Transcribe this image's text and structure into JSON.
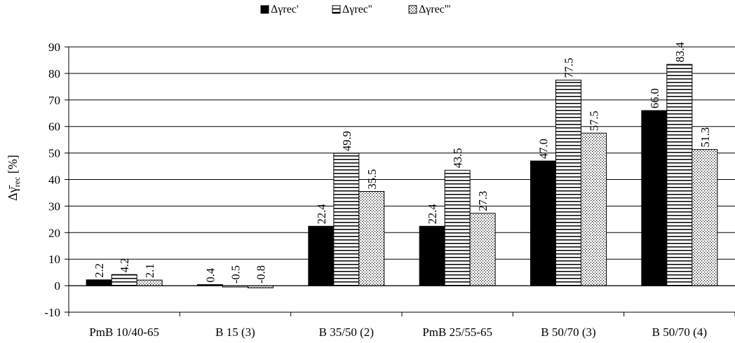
{
  "chart_data": {
    "type": "bar",
    "categories": [
      "PmB 10/40-65",
      "B 15 (3)",
      "B 35/50 (2)",
      "PmB 25/55-65",
      "B 50/70 (3)",
      "B 50/70 (4)"
    ],
    "series": [
      {
        "name": "Δγrec'",
        "values": [
          2.2,
          0.4,
          22.4,
          22.4,
          47.0,
          66.0
        ],
        "labels": [
          "2.2",
          "0.4",
          "22.4",
          "22.4",
          "47.0",
          "66.0"
        ],
        "pattern": "solid"
      },
      {
        "name": "Δγrec''",
        "values": [
          4.2,
          -0.5,
          49.9,
          43.5,
          77.5,
          83.4
        ],
        "labels": [
          "4.2",
          "-0.5",
          "49.9",
          "43.5",
          "77.5",
          "83.4"
        ],
        "pattern": "horizontal-lines"
      },
      {
        "name": "Δγrec'''",
        "values": [
          2.1,
          -0.8,
          35.5,
          27.3,
          57.5,
          51.3
        ],
        "labels": [
          "2.1",
          "-0.8",
          "35.5",
          "27.3",
          "57.5",
          "51.3"
        ],
        "pattern": "dots"
      }
    ],
    "ylabel": {
      "main": "Δγ̄",
      "sub": "rec",
      "unit": " [%]"
    },
    "ylim": [
      -10,
      90
    ],
    "yticks": [
      "-10",
      "0",
      "10",
      "20",
      "30",
      "40",
      "50",
      "60",
      "70",
      "80",
      "90"
    ],
    "grid": true,
    "legend": "top-center",
    "colors": {
      "bar_fill": "#000000",
      "background": "#ffffff",
      "grid": "#000000"
    }
  }
}
